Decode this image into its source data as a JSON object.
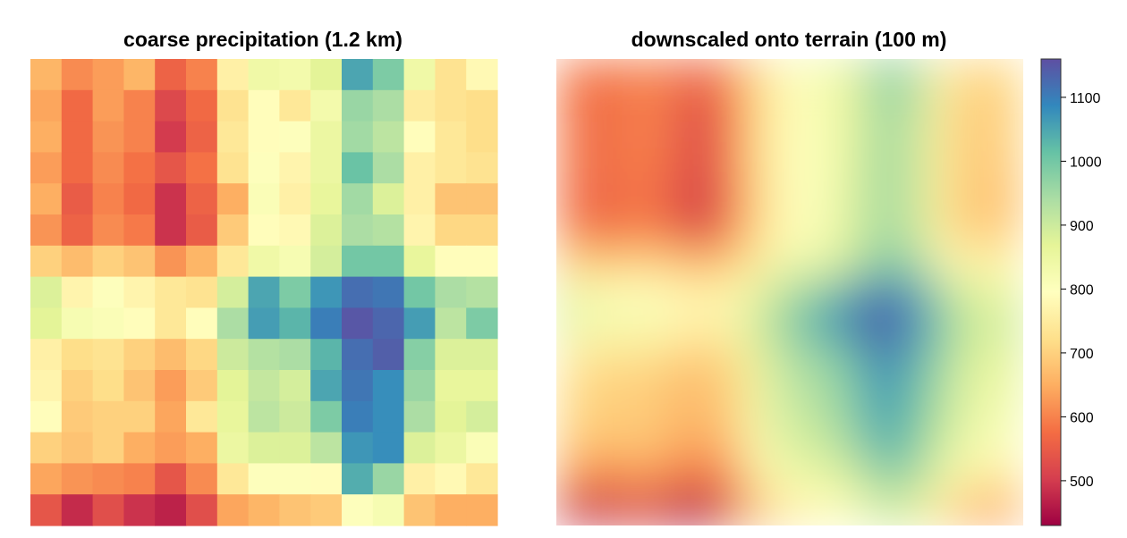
{
  "chart_data": [
    {
      "type": "heatmap",
      "title": "coarse precipitation  (1.2 km)",
      "xlabel": "",
      "ylabel": "",
      "grid": false,
      "rows": 15,
      "cols": 15,
      "values": [
        [
          660,
          610,
          630,
          660,
          560,
          600,
          760,
          840,
          830,
          870,
          1050,
          990,
          840,
          730,
          780
        ],
        [
          640,
          570,
          630,
          600,
          520,
          570,
          730,
          790,
          740,
          830,
          960,
          940,
          750,
          730,
          720
        ],
        [
          650,
          570,
          620,
          600,
          500,
          560,
          740,
          790,
          800,
          850,
          950,
          920,
          790,
          740,
          720
        ],
        [
          630,
          570,
          610,
          580,
          540,
          580,
          730,
          800,
          770,
          850,
          1010,
          940,
          760,
          740,
          730
        ],
        [
          650,
          550,
          600,
          570,
          490,
          560,
          650,
          810,
          760,
          860,
          950,
          880,
          760,
          680,
          680
        ],
        [
          620,
          560,
          610,
          590,
          490,
          550,
          690,
          790,
          780,
          880,
          940,
          930,
          770,
          710,
          710
        ],
        [
          700,
          670,
          700,
          680,
          620,
          660,
          740,
          840,
          820,
          890,
          1000,
          1000,
          860,
          790,
          790
        ],
        [
          880,
          770,
          800,
          770,
          740,
          730,
          890,
          1050,
          990,
          1070,
          1120,
          1110,
          1000,
          940,
          930
        ],
        [
          870,
          820,
          810,
          790,
          740,
          790,
          940,
          1060,
          1030,
          1100,
          1150,
          1130,
          1060,
          920,
          990
        ],
        [
          760,
          720,
          730,
          700,
          670,
          710,
          900,
          930,
          940,
          1030,
          1120,
          1140,
          980,
          880,
          880
        ],
        [
          770,
          700,
          720,
          680,
          630,
          690,
          870,
          910,
          890,
          1050,
          1110,
          1080,
          960,
          860,
          860
        ],
        [
          790,
          690,
          700,
          700,
          640,
          740,
          860,
          920,
          900,
          990,
          1100,
          1080,
          940,
          870,
          890
        ],
        [
          700,
          680,
          700,
          650,
          630,
          650,
          850,
          880,
          880,
          920,
          1070,
          1080,
          880,
          850,
          810
        ],
        [
          640,
          620,
          610,
          600,
          540,
          610,
          740,
          800,
          800,
          790,
          1040,
          960,
          760,
          780,
          740
        ],
        [
          540,
          480,
          530,
          490,
          470,
          530,
          640,
          660,
          680,
          690,
          800,
          820,
          680,
          650,
          650
        ]
      ],
      "colorbar": {
        "min": 430,
        "max": 1160,
        "ticks": [
          500,
          600,
          700,
          800,
          900,
          1000,
          1100
        ],
        "palette": [
          "#9e0142",
          "#d53e4f",
          "#f46d43",
          "#fdae61",
          "#fee08b",
          "#ffffbf",
          "#e6f598",
          "#abdda4",
          "#66c2a5",
          "#3288bd",
          "#5e4fa2"
        ]
      }
    },
    {
      "type": "heatmap",
      "title": "downscaled onto terrain  (100 m)",
      "xlabel": "",
      "ylabel": "",
      "grid": false,
      "rows": 15,
      "cols": 15,
      "values": [
        [
          600,
          580,
          600,
          600,
          560,
          600,
          720,
          800,
          830,
          860,
          1000,
          930,
          760,
          700,
          720
        ],
        [
          590,
          560,
          600,
          590,
          520,
          580,
          720,
          790,
          810,
          860,
          970,
          920,
          750,
          680,
          710
        ],
        [
          600,
          560,
          600,
          590,
          500,
          580,
          720,
          800,
          810,
          870,
          960,
          900,
          740,
          680,
          710
        ],
        [
          600,
          560,
          600,
          580,
          510,
          580,
          720,
          800,
          800,
          870,
          970,
          900,
          740,
          680,
          700
        ],
        [
          590,
          550,
          590,
          570,
          480,
          570,
          710,
          800,
          810,
          880,
          960,
          900,
          740,
          670,
          690
        ],
        [
          600,
          560,
          600,
          580,
          500,
          580,
          720,
          800,
          810,
          880,
          960,
          900,
          740,
          680,
          700
        ],
        [
          700,
          680,
          700,
          690,
          650,
          680,
          760,
          830,
          840,
          900,
          990,
          950,
          800,
          760,
          780
        ],
        [
          860,
          800,
          800,
          790,
          760,
          780,
          860,
          940,
          980,
          1050,
          1110,
          1060,
          930,
          860,
          860
        ],
        [
          880,
          810,
          840,
          800,
          760,
          780,
          900,
          990,
          1050,
          1110,
          1160,
          1090,
          980,
          890,
          900
        ],
        [
          770,
          730,
          740,
          720,
          690,
          720,
          860,
          940,
          960,
          1020,
          1110,
          1040,
          950,
          870,
          870
        ],
        [
          720,
          690,
          700,
          680,
          660,
          690,
          840,
          920,
          940,
          990,
          1080,
          1020,
          930,
          850,
          850
        ],
        [
          720,
          690,
          700,
          680,
          660,
          690,
          830,
          900,
          920,
          980,
          1060,
          1010,
          910,
          840,
          830
        ],
        [
          690,
          660,
          690,
          660,
          630,
          660,
          810,
          880,
          900,
          950,
          1040,
          990,
          880,
          820,
          800
        ],
        [
          620,
          580,
          620,
          600,
          560,
          600,
          760,
          820,
          840,
          880,
          980,
          940,
          820,
          760,
          740
        ],
        [
          490,
          470,
          530,
          480,
          440,
          520,
          680,
          760,
          780,
          800,
          900,
          870,
          720,
          640,
          650
        ]
      ],
      "colorbar": {
        "min": 430,
        "max": 1160,
        "ticks": [
          500,
          600,
          700,
          800,
          900,
          1000,
          1100
        ],
        "palette": [
          "#9e0142",
          "#d53e4f",
          "#f46d43",
          "#fdae61",
          "#fee08b",
          "#ffffbf",
          "#e6f598",
          "#abdda4",
          "#66c2a5",
          "#3288bd",
          "#5e4fa2"
        ]
      }
    }
  ]
}
